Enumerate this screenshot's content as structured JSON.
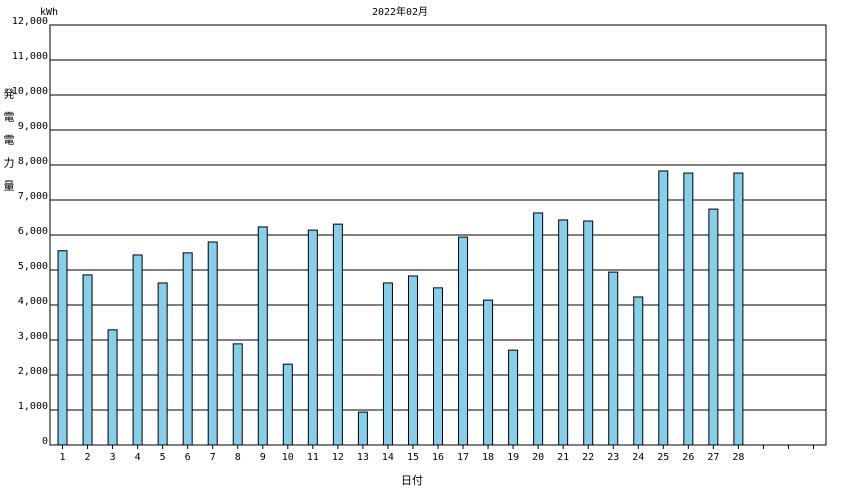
{
  "chart_data": {
    "type": "bar",
    "title": "2022年02月",
    "unit": "kWh",
    "y_label": "発電電力量",
    "x_label": "日付",
    "categories": [
      "1",
      "2",
      "3",
      "4",
      "5",
      "6",
      "7",
      "8",
      "9",
      "10",
      "11",
      "12",
      "13",
      "14",
      "15",
      "16",
      "17",
      "18",
      "19",
      "20",
      "21",
      "22",
      "23",
      "24",
      "25",
      "26",
      "27",
      "28",
      null,
      null,
      null
    ],
    "values": [
      5550,
      4860,
      3290,
      5430,
      4630,
      5490,
      5800,
      2890,
      6230,
      2310,
      6140,
      6310,
      940,
      4630,
      4830,
      4490,
      5940,
      4140,
      2710,
      6630,
      6430,
      6400,
      4940,
      4230,
      7830,
      7770,
      6740,
      7770,
      null,
      null,
      null
    ],
    "color": "#87ceeb",
    "ylim": [
      0,
      12000
    ],
    "yticks": [
      0,
      {
        "value": 1000,
        "label": "1,000"
      },
      {
        "value": 2000,
        "label": "2,000"
      },
      {
        "value": 3000,
        "label": "3,000"
      },
      {
        "value": 4000,
        "label": "4,000"
      },
      {
        "value": 5000,
        "label": "5,000"
      },
      {
        "value": 6000,
        "label": "6,000"
      },
      {
        "value": 7000,
        "label": "7,000"
      },
      {
        "value": 8000,
        "label": "8,000"
      },
      {
        "value": 9000,
        "label": "9,000"
      },
      {
        "value": 10000,
        "label": "10,000"
      },
      {
        "value": 11000,
        "label": "11,000"
      },
      {
        "value": 12000,
        "label": "12,000"
      }
    ],
    "grid": true
  }
}
